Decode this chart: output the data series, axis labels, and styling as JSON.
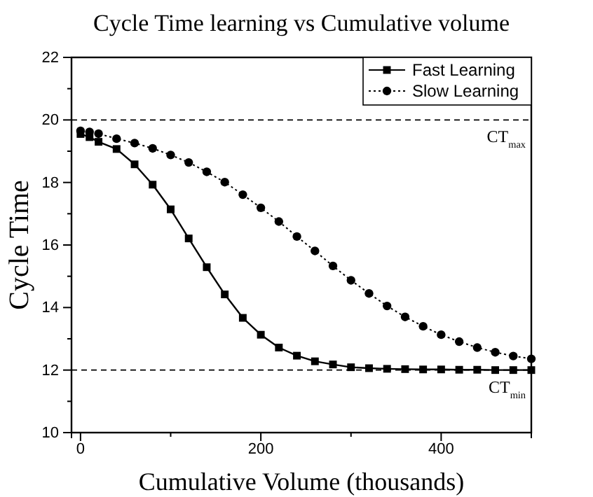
{
  "chart_data": {
    "type": "line",
    "title": "Cycle Time learning vs Cumulative volume",
    "xlabel": "Cumulative Volume (thousands)",
    "ylabel": "Cycle Time",
    "x": [
      0,
      10,
      20,
      40,
      60,
      80,
      100,
      120,
      140,
      160,
      180,
      200,
      220,
      240,
      260,
      280,
      300,
      320,
      340,
      360,
      380,
      400,
      420,
      440,
      460,
      480,
      500
    ],
    "series": [
      {
        "name": "Fast Learning",
        "color": "#000000",
        "marker": "square",
        "line_style": "solid",
        "values": [
          19.55,
          19.45,
          19.3,
          19.07,
          18.58,
          17.93,
          17.14,
          16.21,
          15.29,
          14.42,
          13.67,
          13.13,
          12.72,
          12.46,
          12.28,
          12.18,
          12.09,
          12.06,
          12.04,
          12.03,
          12.02,
          12.02,
          12.01,
          12.01,
          12.0,
          12.0,
          12.0
        ]
      },
      {
        "name": "Slow Learning",
        "color": "#000000",
        "marker": "circle",
        "line_style": "dotted",
        "values": [
          19.65,
          19.62,
          19.56,
          19.4,
          19.26,
          19.09,
          18.88,
          18.64,
          18.34,
          18.01,
          17.61,
          17.19,
          16.75,
          16.27,
          15.81,
          15.33,
          14.87,
          14.45,
          14.05,
          13.7,
          13.4,
          13.13,
          12.91,
          12.72,
          12.57,
          12.45,
          12.36
        ]
      }
    ],
    "xlim": [
      -10,
      500
    ],
    "ylim": [
      10,
      22
    ],
    "xticks": [
      0,
      {
        "value": 100,
        "label": null
      },
      200,
      {
        "value": 300,
        "label": null
      },
      400,
      {
        "value": 500,
        "label": null
      }
    ],
    "yticks": [
      10,
      {
        "value": 11,
        "label": null
      },
      12,
      {
        "value": 13,
        "label": null
      },
      14,
      {
        "value": 15,
        "label": null
      },
      16,
      {
        "value": 17,
        "label": null
      },
      18,
      {
        "value": 19,
        "label": null
      },
      20,
      {
        "value": 21,
        "label": null
      },
      22
    ],
    "ref_lines": [
      {
        "axis": "y",
        "value": 20,
        "label": "CT$_{max}$",
        "line_style": "dashed",
        "color": "#000000"
      },
      {
        "axis": "y",
        "value": 12,
        "label": "CT$_{min}$",
        "line_style": "dashed",
        "color": "#000000"
      }
    ],
    "legend": "top right",
    "grid": false
  }
}
